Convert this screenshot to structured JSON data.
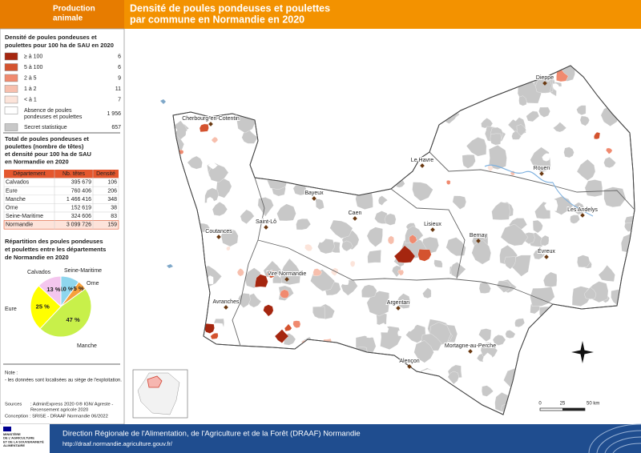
{
  "header": {
    "category_lines": [
      "Production",
      "animale"
    ],
    "title_lines": [
      "Densité de poules pondeuses et poulettes",
      "par commune en Normandie en 2020"
    ]
  },
  "legend": {
    "title_lines": [
      "Densité de poules pondeuses et",
      "poulettes pour 100 ha de SAU en 2020"
    ],
    "items": [
      {
        "label_lines": [
          "≥ à 100"
        ],
        "count": "6",
        "color": "#a5260f"
      },
      {
        "label_lines": [
          "5 à 100"
        ],
        "count": "6",
        "color": "#d4532f"
      },
      {
        "label_lines": [
          "2 à 5"
        ],
        "count": "9",
        "color": "#f08a6f"
      },
      {
        "label_lines": [
          "1 à 2"
        ],
        "count": "11",
        "color": "#f7bfad"
      },
      {
        "label_lines": [
          "< à 1"
        ],
        "count": "7",
        "color": "#fce4da"
      },
      {
        "label_lines": [
          "Absence de poules",
          "pondeuses et poulettes"
        ],
        "count": "1 956",
        "color": "#ffffff"
      },
      {
        "label_lines": [
          "Secret statistique"
        ],
        "count": "657",
        "color": "#c8c8c8"
      }
    ]
  },
  "table": {
    "title_lines": [
      "Total de poules pondeuses et",
      "poulettes (nombre de têtes)",
      "et densité pour 100 ha de SAU",
      "en Normandie en 2020"
    ],
    "columns": [
      "Département",
      "Nb. têtes",
      "Densité"
    ],
    "rows": [
      [
        "Calvados",
        "395 679",
        "106"
      ],
      [
        "Eure",
        "760 406",
        "206"
      ],
      [
        "Manche",
        "1 466 416",
        "348"
      ],
      [
        "Orne",
        "152 619",
        "38"
      ],
      [
        "Seine-Maritime",
        "324 606",
        "83"
      ],
      [
        "Normandie",
        "3 099 726",
        "159"
      ]
    ]
  },
  "chart_data": {
    "type": "pie",
    "title_lines": [
      "Répartition des poules pondeuses",
      "et poulettes entre les départements",
      "de Normandie en 2020"
    ],
    "categories": [
      "Seine-Maritime",
      "Orne",
      "Manche",
      "Eure",
      "Calvados"
    ],
    "values": [
      10,
      5,
      47,
      25,
      13
    ],
    "value_labels": [
      "10 %",
      "5 %",
      "47 %",
      "25 %",
      "13 %"
    ],
    "colors": [
      "#8fd6ee",
      "#f6a03c",
      "#c8f04a",
      "#ffff00",
      "#f4c6ee"
    ]
  },
  "note": {
    "title": "Note :",
    "text": "- les données sont localisées au siège de l'exploitation."
  },
  "sources": {
    "label": "Sources",
    "lines": [
      ": AdminExpress 2020 ©® IGN/ Agreste -",
      "Recensement agricole 2020"
    ],
    "conception": "Conception : SRISE - DRAAF Normandie 06/2022"
  },
  "map": {
    "places": [
      "Dieppe",
      "Cherbourg-en-Cotentin",
      "Le Havre",
      "Rouen",
      "Bayeux",
      "Caen",
      "Lisieux",
      "Saint-Lô",
      "Les Andelys",
      "Coutances",
      "Bernay",
      "Évreux",
      "Vire Normandie",
      "Argentan",
      "Avranches",
      "Mortagne-au-Perche",
      "Alençon"
    ],
    "scale": [
      "0",
      "25",
      "50 km"
    ]
  },
  "footer": {
    "ministry_lines": [
      "MINISTÈRE",
      "DE L'AGRICULTURE",
      "ET DE LA SOUVERAINETÉ",
      "ALIMENTAIRE"
    ],
    "organisation": "Direction Régionale de l'Alimentation, de l'Agriculture et de la Forêt (DRAAF) Normandie",
    "url": "http://draaf.normandie.agriculture.gouv.fr/"
  }
}
